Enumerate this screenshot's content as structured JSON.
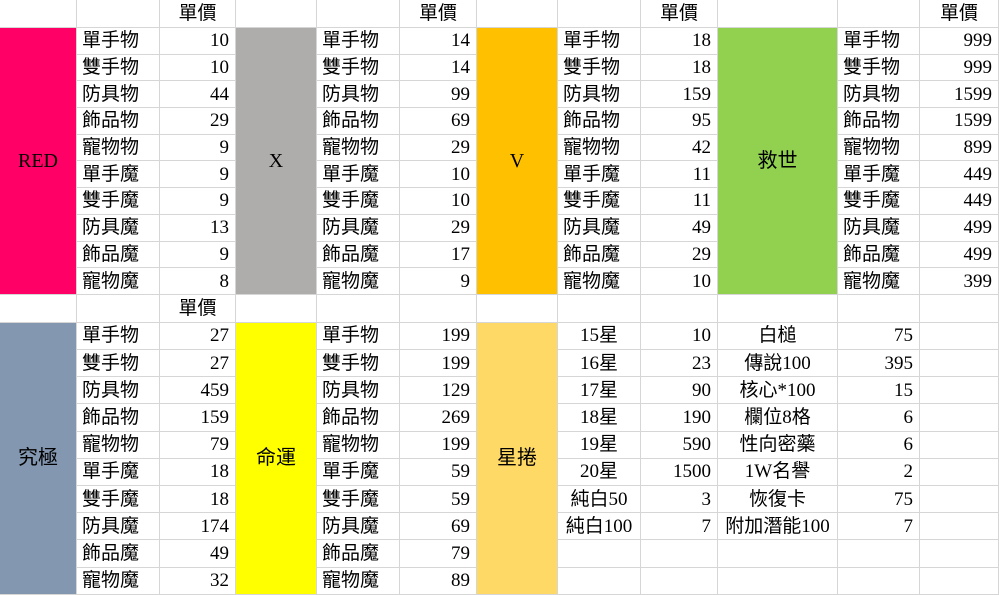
{
  "sheet": {
    "price_header": "單價",
    "top_groups": [
      {
        "name": "RED",
        "slug": "red",
        "color": "#FF0066",
        "items": [
          {
            "label": "單手物",
            "value": 10
          },
          {
            "label": "雙手物",
            "value": 10
          },
          {
            "label": "防具物",
            "value": 44
          },
          {
            "label": "飾品物",
            "value": 29
          },
          {
            "label": "寵物物",
            "value": 9
          },
          {
            "label": "單手魔",
            "value": 9
          },
          {
            "label": "雙手魔",
            "value": 9
          },
          {
            "label": "防具魔",
            "value": 13
          },
          {
            "label": "飾品魔",
            "value": 9
          },
          {
            "label": "寵物魔",
            "value": 8
          }
        ]
      },
      {
        "name": "X",
        "slug": "x",
        "color": "#AFACAC",
        "items": [
          {
            "label": "單手物",
            "value": 14
          },
          {
            "label": "雙手物",
            "value": 14
          },
          {
            "label": "防具物",
            "value": 99
          },
          {
            "label": "飾品物",
            "value": 69
          },
          {
            "label": "寵物物",
            "value": 29
          },
          {
            "label": "單手魔",
            "value": 10
          },
          {
            "label": "雙手魔",
            "value": 10
          },
          {
            "label": "防具魔",
            "value": 29
          },
          {
            "label": "飾品魔",
            "value": 17
          },
          {
            "label": "寵物魔",
            "value": 9
          }
        ]
      },
      {
        "name": "V",
        "slug": "v",
        "color": "#FFC000",
        "items": [
          {
            "label": "單手物",
            "value": 18
          },
          {
            "label": "雙手物",
            "value": 18
          },
          {
            "label": "防具物",
            "value": 159
          },
          {
            "label": "飾品物",
            "value": 95
          },
          {
            "label": "寵物物",
            "value": 42
          },
          {
            "label": "單手魔",
            "value": 11
          },
          {
            "label": "雙手魔",
            "value": 11
          },
          {
            "label": "防具魔",
            "value": 49
          },
          {
            "label": "飾品魔",
            "value": 29
          },
          {
            "label": "寵物魔",
            "value": 10
          }
        ]
      },
      {
        "name": "救世",
        "slug": "jiushi",
        "color": "#92D050",
        "items": [
          {
            "label": "單手物",
            "value": 999
          },
          {
            "label": "雙手物",
            "value": 999
          },
          {
            "label": "防具物",
            "value": 1599
          },
          {
            "label": "飾品物",
            "value": 1599
          },
          {
            "label": "寵物物",
            "value": 899
          },
          {
            "label": "單手魔",
            "value": 449
          },
          {
            "label": "雙手魔",
            "value": 449
          },
          {
            "label": "防具魔",
            "value": 499
          },
          {
            "label": "飾品魔",
            "value": 499
          },
          {
            "label": "寵物魔",
            "value": 399
          }
        ]
      }
    ],
    "bottom_groups": [
      {
        "name": "究極",
        "slug": "jiuji",
        "color": "#8497B0",
        "has_price_header": true,
        "label_align": "left",
        "items": [
          {
            "label": "單手物",
            "value": 27
          },
          {
            "label": "雙手物",
            "value": 27
          },
          {
            "label": "防具物",
            "value": 459
          },
          {
            "label": "飾品物",
            "value": 159
          },
          {
            "label": "寵物物",
            "value": 79
          },
          {
            "label": "單手魔",
            "value": 18
          },
          {
            "label": "雙手魔",
            "value": 18
          },
          {
            "label": "防具魔",
            "value": 174
          },
          {
            "label": "飾品魔",
            "value": 49
          },
          {
            "label": "寵物魔",
            "value": 32
          }
        ]
      },
      {
        "name": "命運",
        "slug": "mingyun",
        "color": "#FFFF00",
        "has_price_header": false,
        "label_align": "left",
        "items": [
          {
            "label": "單手物",
            "value": 199
          },
          {
            "label": "雙手物",
            "value": 199
          },
          {
            "label": "防具物",
            "value": 129
          },
          {
            "label": "飾品物",
            "value": 269
          },
          {
            "label": "寵物物",
            "value": 199
          },
          {
            "label": "單手魔",
            "value": 59
          },
          {
            "label": "雙手魔",
            "value": 59
          },
          {
            "label": "防具魔",
            "value": 69
          },
          {
            "label": "飾品魔",
            "value": 79
          },
          {
            "label": "寵物魔",
            "value": 89
          }
        ]
      },
      {
        "name": "星捲",
        "slug": "xingjuan",
        "color": "#FFD966",
        "has_price_header": false,
        "label_align": "center",
        "items": [
          {
            "label": "15星",
            "value": 10
          },
          {
            "label": "16星",
            "value": 23
          },
          {
            "label": "17星",
            "value": 90
          },
          {
            "label": "18星",
            "value": 190
          },
          {
            "label": "19星",
            "value": 590
          },
          {
            "label": "20星",
            "value": 1500
          },
          {
            "label": "純白50",
            "value": 3
          },
          {
            "label": "純白100",
            "value": 7
          }
        ]
      }
    ],
    "extra_items": [
      {
        "label": "白槌",
        "value": 75
      },
      {
        "label": "傳說100",
        "value": 395
      },
      {
        "label": "核心*100",
        "value": 15
      },
      {
        "label": "欄位8格",
        "value": 6
      },
      {
        "label": "性向密藥",
        "value": 6
      },
      {
        "label": "1W名譽",
        "value": 2
      },
      {
        "label": "恢復卡",
        "value": 75
      },
      {
        "label": "附加潛能100",
        "value": 7
      }
    ],
    "gridline_color": "#D6D6D6"
  }
}
